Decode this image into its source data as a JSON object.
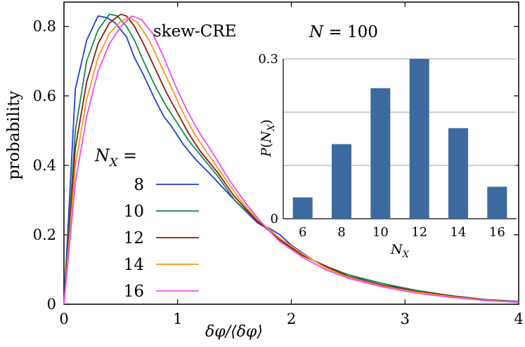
{
  "chart_data": [
    {
      "type": "line",
      "annotation": "skew-CRE",
      "xlabel": "δφ/⟨δφ⟩",
      "ylabel": "probability",
      "xlim": [
        0,
        4
      ],
      "ylim": [
        0,
        0.87
      ],
      "xticks": [
        "0",
        "1",
        "2",
        "3",
        "4"
      ],
      "yticks": [
        "0",
        "0.2",
        "0.4",
        "0.6",
        "0.8"
      ],
      "legend_title": "N_X =",
      "legend_placement": "left",
      "grid": false,
      "series": [
        {
          "name": "8",
          "color": "#1f3fd8",
          "x": [
            0,
            0.1,
            0.2,
            0.3,
            0.38,
            0.45,
            0.55,
            0.62,
            0.7,
            0.8,
            0.88,
            0.95,
            1.05,
            1.15,
            1.3,
            1.5,
            1.7,
            1.75,
            1.8,
            1.9,
            2.0,
            2.2,
            2.4,
            2.6,
            2.8,
            3.0,
            3.3,
            3.6,
            4.0
          ],
          "y": [
            0,
            0.62,
            0.76,
            0.83,
            0.825,
            0.81,
            0.77,
            0.71,
            0.66,
            0.59,
            0.54,
            0.51,
            0.46,
            0.42,
            0.37,
            0.3,
            0.235,
            0.225,
            0.22,
            0.2,
            0.17,
            0.125,
            0.095,
            0.075,
            0.06,
            0.045,
            0.025,
            0.015,
            0.008
          ]
        },
        {
          "name": "10",
          "color": "#118a4c",
          "x": [
            0,
            0.1,
            0.2,
            0.3,
            0.4,
            0.47,
            0.55,
            0.62,
            0.7,
            0.8,
            0.9,
            1.0,
            1.1,
            1.2,
            1.35,
            1.5,
            1.7,
            1.9,
            2.1,
            2.3,
            2.5,
            2.8,
            3.1,
            3.4,
            3.7,
            4.0
          ],
          "y": [
            0,
            0.5,
            0.7,
            0.79,
            0.835,
            0.83,
            0.8,
            0.76,
            0.7,
            0.63,
            0.57,
            0.52,
            0.47,
            0.43,
            0.37,
            0.3,
            0.24,
            0.19,
            0.14,
            0.11,
            0.085,
            0.06,
            0.04,
            0.025,
            0.014,
            0.008
          ]
        },
        {
          "name": "12",
          "color": "#8b1a10",
          "x": [
            0,
            0.1,
            0.2,
            0.3,
            0.4,
            0.5,
            0.55,
            0.62,
            0.7,
            0.8,
            0.9,
            1.0,
            1.1,
            1.2,
            1.35,
            1.5,
            1.7,
            1.9,
            2.1,
            2.3,
            2.5,
            2.8,
            3.1,
            3.4,
            3.7,
            4.0
          ],
          "y": [
            0,
            0.45,
            0.64,
            0.75,
            0.81,
            0.835,
            0.83,
            0.8,
            0.75,
            0.68,
            0.61,
            0.55,
            0.49,
            0.44,
            0.38,
            0.31,
            0.24,
            0.185,
            0.14,
            0.11,
            0.08,
            0.055,
            0.037,
            0.024,
            0.013,
            0.006
          ]
        },
        {
          "name": "14",
          "color": "#f79a16",
          "x": [
            0,
            0.1,
            0.2,
            0.3,
            0.4,
            0.5,
            0.58,
            0.65,
            0.75,
            0.85,
            0.95,
            1.05,
            1.15,
            1.25,
            1.4,
            1.55,
            1.7,
            1.9,
            2.1,
            2.3,
            2.5,
            2.8,
            3.1,
            3.4,
            3.7,
            4.0
          ],
          "y": [
            0,
            0.4,
            0.59,
            0.71,
            0.78,
            0.815,
            0.825,
            0.81,
            0.76,
            0.69,
            0.62,
            0.55,
            0.49,
            0.44,
            0.37,
            0.3,
            0.245,
            0.19,
            0.145,
            0.105,
            0.078,
            0.052,
            0.035,
            0.022,
            0.012,
            0.006
          ]
        },
        {
          "name": "16",
          "color": "#f04bf0",
          "x": [
            0,
            0.1,
            0.2,
            0.3,
            0.4,
            0.5,
            0.6,
            0.68,
            0.78,
            0.88,
            0.98,
            1.08,
            1.18,
            1.3,
            1.45,
            1.6,
            1.75,
            1.9,
            2.1,
            2.3,
            2.5,
            2.8,
            3.1,
            3.4,
            3.7,
            4.0
          ],
          "y": [
            0,
            0.35,
            0.54,
            0.67,
            0.75,
            0.8,
            0.83,
            0.82,
            0.78,
            0.71,
            0.63,
            0.56,
            0.5,
            0.44,
            0.36,
            0.29,
            0.23,
            0.18,
            0.135,
            0.1,
            0.075,
            0.05,
            0.032,
            0.02,
            0.011,
            0.005
          ]
        }
      ]
    },
    {
      "type": "bar",
      "title": "N = 100",
      "xlabel": "N_X",
      "ylabel": "P(N_X)",
      "categories": [
        "6",
        "8",
        "10",
        "12",
        "14",
        "16"
      ],
      "values": [
        0.04,
        0.14,
        0.245,
        0.3,
        0.17,
        0.06
      ],
      "ylim": [
        0,
        0.3
      ],
      "yticks": [
        "0",
        "0.3"
      ],
      "grid": true,
      "bar_color": "#3d6a9e"
    }
  ]
}
